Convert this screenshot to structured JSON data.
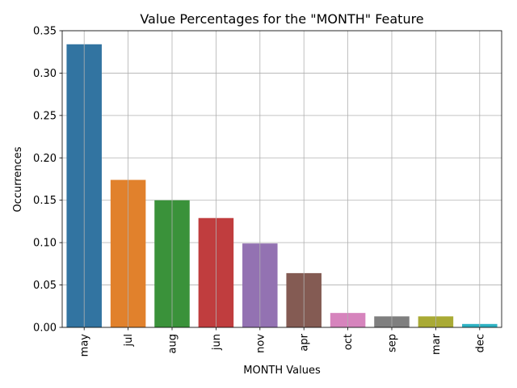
{
  "chart_data": {
    "type": "bar",
    "title": "Value Percentages for the \"MONTH\" Feature",
    "xlabel": "MONTH Values",
    "ylabel": "Occurrences",
    "categories": [
      "may",
      "jul",
      "aug",
      "jun",
      "nov",
      "apr",
      "oct",
      "sep",
      "mar",
      "dec"
    ],
    "values": [
      0.334,
      0.174,
      0.15,
      0.129,
      0.099,
      0.064,
      0.017,
      0.013,
      0.013,
      0.004
    ],
    "colors": [
      "#3274a1",
      "#e1812c",
      "#3a923a",
      "#c03d3e",
      "#9372b2",
      "#845b53",
      "#d684bd",
      "#7f7f7f",
      "#a9aa35",
      "#2eb2c3"
    ],
    "ylim": [
      0,
      0.35
    ],
    "yticks": [
      0.0,
      0.05,
      0.1,
      0.15,
      0.2,
      0.25,
      0.3,
      0.35
    ],
    "ytick_labels": [
      "0.00",
      "0.05",
      "0.10",
      "0.15",
      "0.20",
      "0.25",
      "0.30",
      "0.35"
    ],
    "grid": true
  }
}
